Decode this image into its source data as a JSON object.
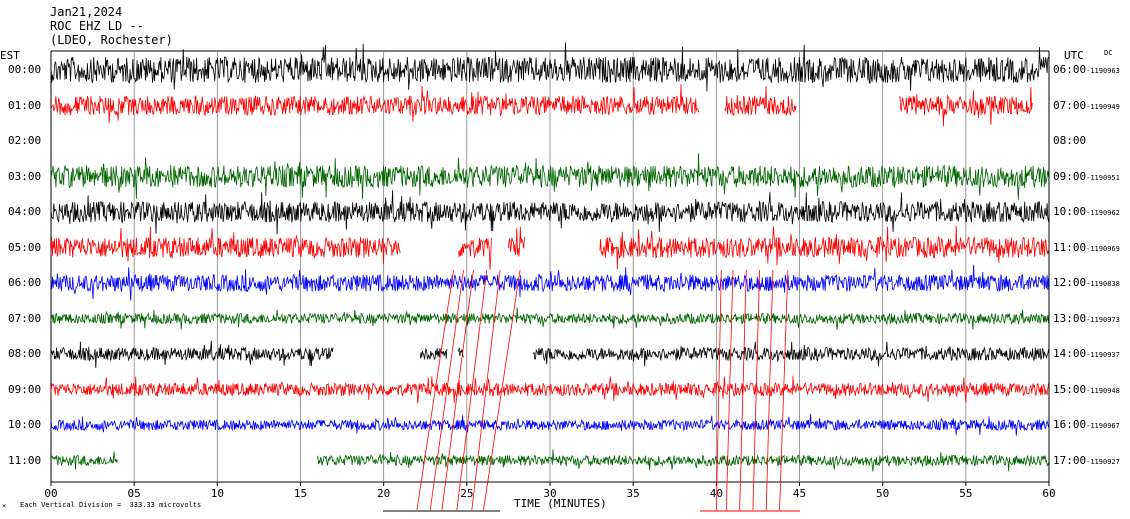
{
  "header": {
    "date": "Jan21,2024",
    "station": "ROC EHZ LD --",
    "network": "(LDEO, Rochester)"
  },
  "left_axis_label": "EST",
  "right_axis_label": "UTC",
  "dc_label": "DC",
  "xlabel": "TIME (MINUTES)",
  "footer": "Each Vertical Division =  333.33 microvolts",
  "colors": {
    "black": "#000000",
    "red": "#ff0000",
    "blue": "#0000ff",
    "green": "#006400",
    "grid": "#808080"
  },
  "chart_data": {
    "type": "line",
    "title": "ROC EHZ LD --",
    "xlabel": "TIME (MINUTES)",
    "xlim": [
      0,
      60
    ],
    "x_ticks": [
      "00",
      "05",
      "10",
      "15",
      "20",
      "25",
      "30",
      "35",
      "40",
      "45",
      "50",
      "55",
      "60"
    ],
    "series": [
      {
        "est": "00:00",
        "utc": "06:00",
        "dc": "-1190963",
        "color": "black",
        "amplitude": 1.0,
        "segments": [
          [
            0,
            60
          ]
        ]
      },
      {
        "est": "01:00",
        "utc": "07:00",
        "dc": "-1190949",
        "color": "red",
        "amplitude": 0.75,
        "segments": [
          [
            0,
            39
          ],
          [
            40.5,
            44.8
          ],
          [
            51,
            59
          ]
        ]
      },
      {
        "est": "02:00",
        "utc": "08:00",
        "dc": "",
        "color": "blue",
        "amplitude": 0,
        "segments": []
      },
      {
        "est": "03:00",
        "utc": "09:00",
        "dc": "-1190951",
        "color": "green",
        "amplitude": 0.85,
        "segments": [
          [
            0,
            60
          ]
        ]
      },
      {
        "est": "04:00",
        "utc": "10:00",
        "dc": "-1190962",
        "color": "black",
        "amplitude": 0.8,
        "segments": [
          [
            0,
            60
          ]
        ]
      },
      {
        "est": "05:00",
        "utc": "11:00",
        "dc": "-1190969",
        "color": "red",
        "amplitude": 0.8,
        "segments": [
          [
            0,
            21
          ],
          [
            24.5,
            26.5
          ],
          [
            27.5,
            28.5
          ],
          [
            33,
            60
          ]
        ]
      },
      {
        "est": "06:00",
        "utc": "12:00",
        "dc": "-1190838",
        "color": "blue",
        "amplitude": 0.65,
        "segments": [
          [
            0,
            60
          ]
        ]
      },
      {
        "est": "07:00",
        "utc": "13:00",
        "dc": "-1190973",
        "color": "green",
        "amplitude": 0.4,
        "segments": [
          [
            0,
            60
          ]
        ]
      },
      {
        "est": "08:00",
        "utc": "14:00",
        "dc": "-1190937",
        "color": "black",
        "amplitude": 0.5,
        "segments": [
          [
            0,
            17
          ],
          [
            22.2,
            23.8
          ],
          [
            24.5,
            24.8
          ],
          [
            29,
            60
          ]
        ]
      },
      {
        "est": "09:00",
        "utc": "15:00",
        "dc": "-1190948",
        "color": "red",
        "amplitude": 0.5,
        "segments": [
          [
            0,
            60
          ]
        ]
      },
      {
        "est": "10:00",
        "utc": "16:00",
        "dc": "-1190967",
        "color": "blue",
        "amplitude": 0.4,
        "segments": [
          [
            0,
            60
          ]
        ]
      },
      {
        "est": "11:00",
        "utc": "17:00",
        "dc": "-1190927",
        "color": "green",
        "amplitude": 0.4,
        "segments": [
          [
            0,
            4
          ],
          [
            16,
            60
          ]
        ]
      }
    ]
  }
}
